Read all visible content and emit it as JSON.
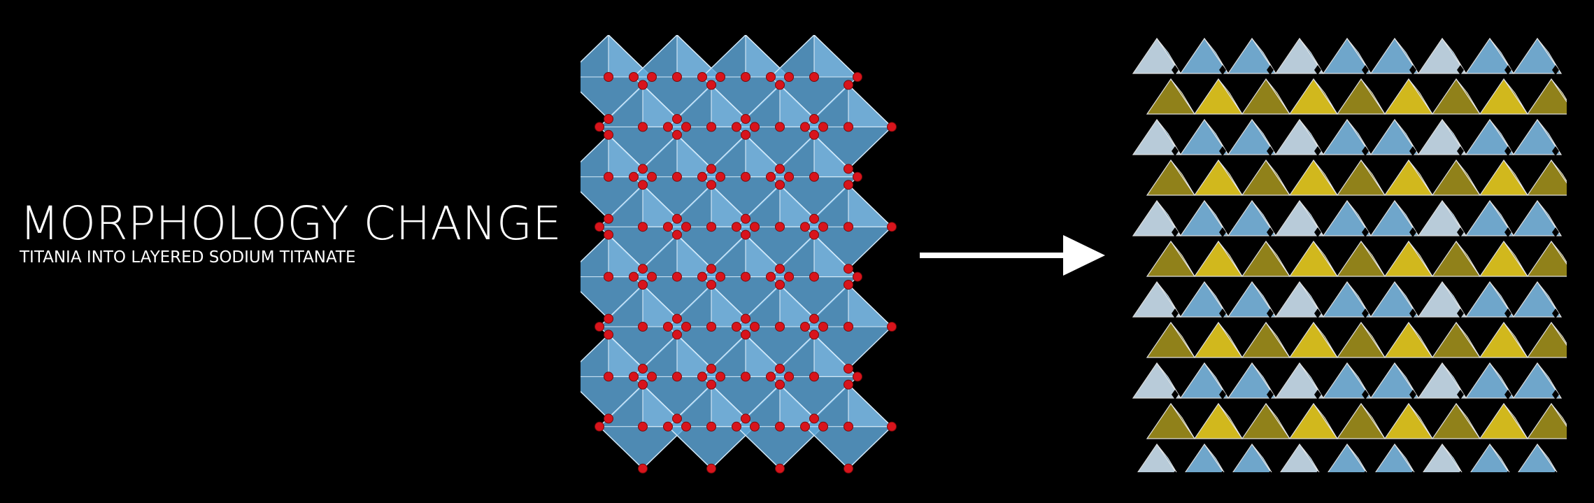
{
  "slide": {
    "title": "MORPHOLOGY CHANGE",
    "subtitle": "TITANIA INTO LAYERED SODIUM TITANATE"
  },
  "graphics": {
    "left_structure": {
      "description_icon": "titania-crystal-structure",
      "polyhedra_color": "#5fa8db",
      "atom_color": "#d8141c"
    },
    "right_structure": {
      "description_icon": "layered-sodium-titanate-structure",
      "layer_colors": [
        "#e3c81f",
        "#9c8c1c",
        "#78b4dc",
        "#c8dcec"
      ]
    },
    "arrow": {
      "icon": "right-arrow-icon",
      "color": "#ffffff"
    }
  }
}
